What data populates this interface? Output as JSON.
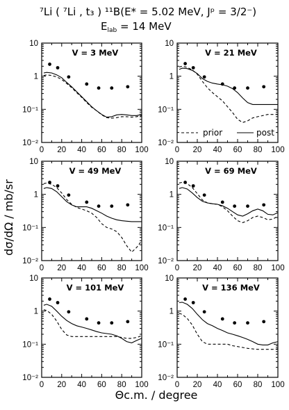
{
  "figure": {
    "reaction": "⁷Li ( ⁷Li , t₃ ) ¹¹B(E* = 5.02 MeV, Jᵖ = 3/2⁻)",
    "energy": "E_lab = 14 MeV",
    "xlabel": "Θc.m. / degree",
    "ylabel": "dσ/dΩ / mb/sr"
  },
  "chart_data": [
    {
      "type": "line",
      "label": "V = 3 MeV",
      "xlim": [
        0,
        100
      ],
      "ylim": [
        0.01,
        10
      ],
      "yscale": "log",
      "xticks": [
        "0",
        "20",
        "40",
        "60",
        "80",
        "100"
      ],
      "yticks": [
        "10",
        "1",
        "10⁻¹",
        "10⁻²"
      ],
      "points": {
        "x": [
          8,
          16,
          27,
          45,
          57,
          70,
          86
        ],
        "y": [
          2.3,
          1.8,
          0.95,
          0.58,
          0.44,
          0.44,
          0.48
        ]
      },
      "series": [
        {
          "style": "solid",
          "x": [
            2,
            5,
            10,
            15,
            20,
            25,
            30,
            35,
            40,
            45,
            50,
            55,
            60,
            65,
            70,
            75,
            80,
            85,
            90,
            95,
            100
          ],
          "y": [
            1.25,
            1.3,
            1.25,
            1.1,
            0.9,
            0.65,
            0.48,
            0.34,
            0.24,
            0.17,
            0.12,
            0.09,
            0.07,
            0.058,
            0.06,
            0.068,
            0.07,
            0.068,
            0.065,
            0.065,
            0.07
          ]
        },
        {
          "style": "dashed",
          "x": [
            2,
            5,
            10,
            15,
            20,
            25,
            30,
            35,
            40,
            45,
            50,
            55,
            60,
            65,
            70,
            75,
            80,
            85,
            90,
            95,
            100
          ],
          "y": [
            1.05,
            1.1,
            1.05,
            0.95,
            0.8,
            0.6,
            0.45,
            0.32,
            0.23,
            0.16,
            0.115,
            0.09,
            0.068,
            0.056,
            0.054,
            0.056,
            0.06,
            0.06,
            0.058,
            0.06,
            0.065
          ]
        }
      ]
    },
    {
      "type": "line",
      "label": "V = 21 MeV",
      "xlim": [
        0,
        100
      ],
      "ylim": [
        0.01,
        10
      ],
      "yscale": "log",
      "xticks": [
        "0",
        "20",
        "40",
        "60",
        "80",
        "100"
      ],
      "yticks": [
        "10",
        "1",
        "10⁻¹",
        "10⁻²"
      ],
      "legend": {
        "prior": "prior",
        "post": "post"
      },
      "points": {
        "x": [
          8,
          16,
          27,
          45,
          57,
          70,
          86
        ],
        "y": [
          2.4,
          1.8,
          0.95,
          0.58,
          0.44,
          0.44,
          0.48
        ]
      },
      "series": [
        {
          "style": "solid",
          "name": "post",
          "x": [
            2,
            5,
            10,
            15,
            20,
            25,
            30,
            35,
            40,
            45,
            50,
            55,
            60,
            65,
            70,
            75,
            80,
            85,
            90,
            95,
            100
          ],
          "y": [
            1.6,
            1.75,
            1.7,
            1.5,
            1.2,
            0.85,
            0.7,
            0.62,
            0.58,
            0.55,
            0.5,
            0.42,
            0.32,
            0.22,
            0.16,
            0.14,
            0.14,
            0.14,
            0.14,
            0.14,
            0.14
          ]
        },
        {
          "style": "dashed",
          "name": "prior",
          "x": [
            2,
            5,
            10,
            15,
            20,
            25,
            30,
            35,
            40,
            45,
            50,
            55,
            60,
            65,
            70,
            75,
            80,
            85,
            90,
            95,
            100
          ],
          "y": [
            1.9,
            2.0,
            1.85,
            1.55,
            1.15,
            0.7,
            0.45,
            0.32,
            0.24,
            0.18,
            0.12,
            0.08,
            0.05,
            0.04,
            0.045,
            0.055,
            0.06,
            0.065,
            0.07,
            0.07,
            0.07
          ]
        }
      ]
    },
    {
      "type": "line",
      "label": "V = 49 MeV",
      "xlim": [
        0,
        100
      ],
      "ylim": [
        0.01,
        10
      ],
      "yscale": "log",
      "xticks": [
        "0",
        "20",
        "40",
        "60",
        "80",
        "100"
      ],
      "yticks": [
        "10",
        "1",
        "10⁻¹",
        "10⁻²"
      ],
      "points": {
        "x": [
          8,
          16,
          27,
          45,
          57,
          70,
          86
        ],
        "y": [
          2.3,
          1.8,
          0.95,
          0.58,
          0.44,
          0.44,
          0.48
        ]
      },
      "series": [
        {
          "style": "solid",
          "x": [
            2,
            5,
            10,
            15,
            20,
            25,
            30,
            35,
            40,
            45,
            50,
            55,
            60,
            65,
            70,
            75,
            80,
            85,
            90,
            95,
            100
          ],
          "y": [
            1.5,
            1.6,
            1.5,
            1.2,
            0.85,
            0.6,
            0.48,
            0.42,
            0.42,
            0.42,
            0.38,
            0.32,
            0.27,
            0.22,
            0.19,
            0.17,
            0.16,
            0.155,
            0.15,
            0.15,
            0.15
          ]
        },
        {
          "style": "dashed",
          "x": [
            2,
            5,
            10,
            15,
            20,
            25,
            30,
            35,
            40,
            45,
            50,
            55,
            60,
            65,
            70,
            75,
            80,
            85,
            90,
            95,
            100
          ],
          "y": [
            2.1,
            2.2,
            2.0,
            1.6,
            1.1,
            0.7,
            0.5,
            0.4,
            0.36,
            0.32,
            0.27,
            0.2,
            0.13,
            0.1,
            0.09,
            0.075,
            0.05,
            0.028,
            0.018,
            0.025,
            0.04
          ]
        }
      ]
    },
    {
      "type": "line",
      "label": "V = 69 MeV",
      "xlim": [
        0,
        100
      ],
      "ylim": [
        0.01,
        10
      ],
      "yscale": "log",
      "xticks": [
        "0",
        "20",
        "40",
        "60",
        "80",
        "100"
      ],
      "yticks": [
        "10",
        "1",
        "10⁻¹",
        "10⁻²"
      ],
      "points": {
        "x": [
          8,
          16,
          27,
          45,
          57,
          70,
          86
        ],
        "y": [
          2.3,
          1.8,
          0.95,
          0.58,
          0.44,
          0.44,
          0.48
        ]
      },
      "series": [
        {
          "style": "solid",
          "x": [
            2,
            5,
            10,
            15,
            20,
            25,
            30,
            35,
            40,
            45,
            50,
            55,
            60,
            65,
            70,
            75,
            80,
            85,
            90,
            95,
            100
          ],
          "y": [
            1.5,
            1.6,
            1.45,
            1.1,
            0.8,
            0.62,
            0.55,
            0.52,
            0.5,
            0.45,
            0.38,
            0.3,
            0.24,
            0.22,
            0.26,
            0.32,
            0.36,
            0.32,
            0.25,
            0.24,
            0.28
          ]
        },
        {
          "style": "dashed",
          "x": [
            2,
            5,
            10,
            15,
            20,
            25,
            30,
            35,
            40,
            45,
            50,
            55,
            60,
            65,
            70,
            75,
            80,
            85,
            90,
            95,
            100
          ],
          "y": [
            2.2,
            2.3,
            2.1,
            1.6,
            1.05,
            0.68,
            0.55,
            0.52,
            0.5,
            0.42,
            0.32,
            0.22,
            0.16,
            0.14,
            0.16,
            0.2,
            0.22,
            0.2,
            0.17,
            0.18,
            0.22
          ]
        }
      ]
    },
    {
      "type": "line",
      "label": "V = 101 MeV",
      "xlim": [
        0,
        100
      ],
      "ylim": [
        0.01,
        10
      ],
      "yscale": "log",
      "xticks": [
        "0",
        "20",
        "40",
        "60",
        "80",
        "100"
      ],
      "yticks": [
        "10",
        "1",
        "10⁻¹",
        "10⁻²"
      ],
      "points": {
        "x": [
          8,
          16,
          27,
          45,
          57,
          70,
          86
        ],
        "y": [
          2.3,
          1.8,
          0.95,
          0.58,
          0.44,
          0.44,
          0.48
        ]
      },
      "series": [
        {
          "style": "solid",
          "x": [
            2,
            5,
            10,
            15,
            20,
            25,
            30,
            35,
            40,
            45,
            50,
            55,
            60,
            65,
            70,
            75,
            80,
            85,
            90,
            95,
            100
          ],
          "y": [
            1.5,
            1.6,
            1.4,
            1.0,
            0.7,
            0.52,
            0.42,
            0.36,
            0.33,
            0.3,
            0.27,
            0.24,
            0.22,
            0.21,
            0.2,
            0.18,
            0.15,
            0.12,
            0.11,
            0.13,
            0.15
          ]
        },
        {
          "style": "dashed",
          "x": [
            2,
            5,
            10,
            15,
            20,
            25,
            30,
            35,
            40,
            45,
            50,
            55,
            60,
            65,
            70,
            75,
            80,
            85,
            90,
            95,
            100
          ],
          "y": [
            1.1,
            1.05,
            0.8,
            0.5,
            0.28,
            0.19,
            0.17,
            0.17,
            0.17,
            0.17,
            0.17,
            0.17,
            0.17,
            0.17,
            0.17,
            0.17,
            0.16,
            0.15,
            0.15,
            0.16,
            0.18
          ]
        }
      ]
    },
    {
      "type": "line",
      "label": "V = 136 MeV",
      "xlim": [
        0,
        100
      ],
      "ylim": [
        0.01,
        10
      ],
      "yscale": "log",
      "xticks": [
        "0",
        "20",
        "40",
        "60",
        "80",
        "100"
      ],
      "yticks": [
        "10",
        "1",
        "10⁻¹",
        "10⁻²"
      ],
      "points": {
        "x": [
          8,
          16,
          27,
          45,
          57,
          70,
          86
        ],
        "y": [
          2.3,
          1.8,
          0.95,
          0.58,
          0.44,
          0.44,
          0.48
        ]
      },
      "series": [
        {
          "style": "solid",
          "x": [
            2,
            5,
            10,
            15,
            20,
            25,
            30,
            35,
            40,
            45,
            50,
            55,
            60,
            65,
            70,
            75,
            80,
            85,
            90,
            95,
            100
          ],
          "y": [
            1.8,
            1.85,
            1.6,
            1.2,
            0.8,
            0.55,
            0.42,
            0.36,
            0.3,
            0.26,
            0.22,
            0.2,
            0.18,
            0.16,
            0.14,
            0.12,
            0.1,
            0.095,
            0.095,
            0.11,
            0.12
          ]
        },
        {
          "style": "dashed",
          "x": [
            2,
            5,
            10,
            15,
            20,
            25,
            30,
            35,
            40,
            45,
            50,
            55,
            60,
            65,
            70,
            75,
            80,
            85,
            90,
            95,
            100
          ],
          "y": [
            0.85,
            0.8,
            0.6,
            0.38,
            0.2,
            0.12,
            0.1,
            0.1,
            0.1,
            0.1,
            0.1,
            0.09,
            0.085,
            0.08,
            0.075,
            0.072,
            0.07,
            0.07,
            0.07,
            0.07,
            0.072
          ]
        }
      ]
    }
  ]
}
